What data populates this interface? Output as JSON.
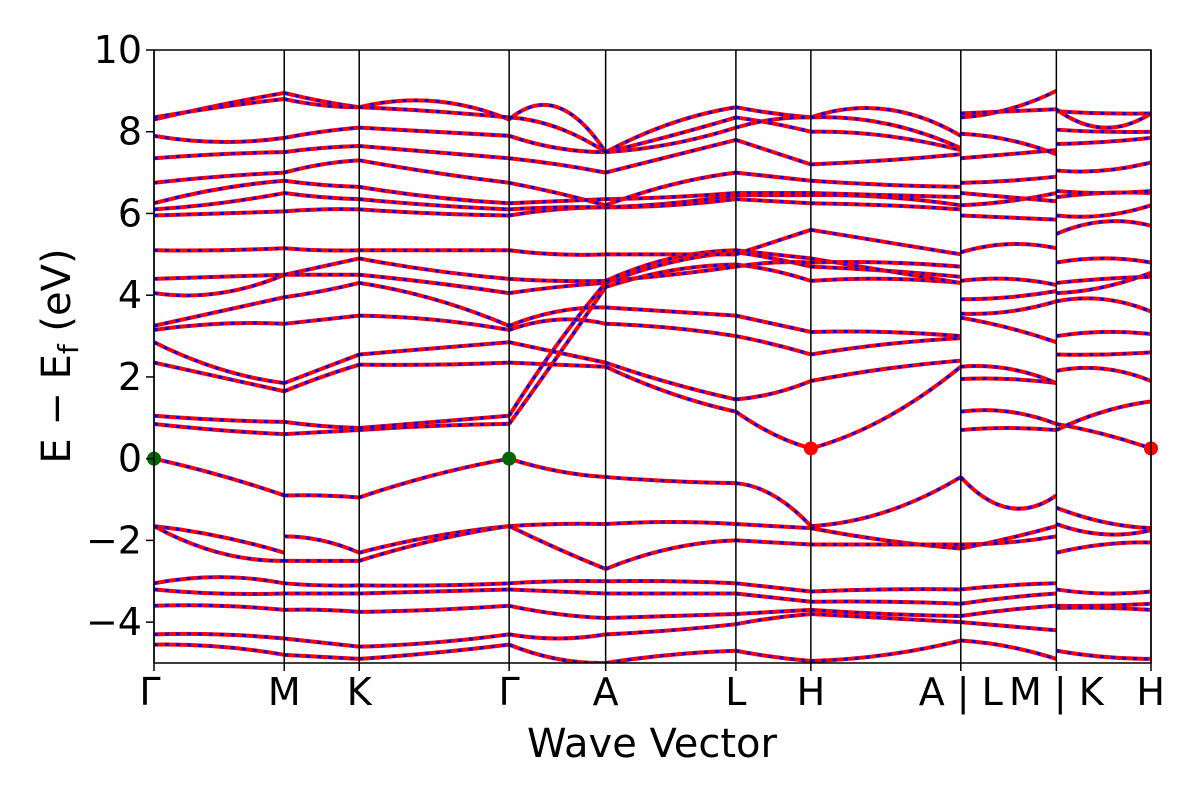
{
  "chart_data": {
    "type": "line",
    "title": "",
    "xlabel": "Wave Vector",
    "ylabel_main": "E − E",
    "ylabel_sub": "f",
    "ylabel_unit": " (eV)",
    "ylim": [
      -5,
      10
    ],
    "yticks": [
      -4,
      -2,
      0,
      2,
      4,
      6,
      8,
      10
    ],
    "ytick_labels": [
      "−4",
      "−2",
      "0",
      "2",
      "4",
      "6",
      "8",
      "10"
    ],
    "xlim": [
      0,
      10.64
    ],
    "kpoints": [
      {
        "label": "Γ",
        "x": 0.0
      },
      {
        "label": "M",
        "x": 1.39
      },
      {
        "label": "K",
        "x": 2.19
      },
      {
        "label": "Γ",
        "x": 3.79
      },
      {
        "label": "A",
        "x": 4.82
      },
      {
        "label": "L",
        "x": 6.21
      },
      {
        "label": "H",
        "x": 7.01
      },
      {
        "label": "A | L",
        "x": 8.61
      },
      {
        "label": "M | K",
        "x": 9.63
      },
      {
        "label": "H",
        "x": 10.64
      }
    ],
    "colors": {
      "band_main": "#ff0000",
      "band_overlay": "#0000ff",
      "vbm_marker": "#006400",
      "cbm_marker": "#ff0000"
    },
    "markers": [
      {
        "name": "VBM",
        "x": 0.0,
        "y": 0.0,
        "color": "#006400"
      },
      {
        "name": "VBM",
        "x": 3.79,
        "y": 0.0,
        "color": "#006400"
      },
      {
        "name": "CBM",
        "x": 7.01,
        "y": 0.25,
        "color": "#ff0000"
      },
      {
        "name": "CBM",
        "x": 10.64,
        "y": 0.25,
        "color": "#ff0000"
      }
    ],
    "segments": [
      {
        "x0": 0.0,
        "x1": 1.39,
        "bands": [
          [
            0.0,
            -0.4,
            -0.9
          ],
          [
            -1.65,
            -1.9,
            -2.3
          ],
          [
            -1.65,
            -2.3,
            -2.5
          ],
          [
            -3.05,
            -2.9,
            -3.05
          ],
          [
            -3.2,
            -3.3,
            -3.3
          ],
          [
            -3.6,
            -3.6,
            -3.7
          ],
          [
            -4.3,
            -4.3,
            -4.4
          ],
          [
            -4.55,
            -4.6,
            -4.8
          ],
          [
            0.85,
            0.7,
            0.6
          ],
          [
            1.05,
            0.95,
            0.9
          ],
          [
            2.35,
            2.0,
            1.65
          ],
          [
            2.85,
            2.2,
            1.85
          ],
          [
            3.15,
            3.3,
            3.3
          ],
          [
            3.25,
            3.6,
            3.95
          ],
          [
            4.05,
            4.05,
            4.5
          ],
          [
            4.4,
            4.45,
            4.5
          ],
          [
            5.1,
            5.1,
            5.15
          ],
          [
            5.95,
            6.0,
            6.05
          ],
          [
            6.1,
            6.25,
            6.5
          ],
          [
            6.25,
            6.6,
            6.8
          ],
          [
            6.75,
            6.9,
            7.0
          ],
          [
            7.35,
            7.45,
            7.5
          ],
          [
            7.9,
            7.75,
            7.85
          ],
          [
            8.3,
            8.65,
            8.95
          ],
          [
            8.35,
            8.6,
            8.8
          ]
        ]
      },
      {
        "x0": 1.39,
        "x1": 2.19,
        "bands": [
          [
            -0.9,
            -0.9,
            -0.95
          ],
          [
            -1.9,
            -2.0,
            -2.3
          ],
          [
            -2.5,
            -2.5,
            -2.5
          ],
          [
            -3.05,
            -3.1,
            -3.1
          ],
          [
            -3.3,
            -3.3,
            -3.3
          ],
          [
            -3.7,
            -3.7,
            -3.75
          ],
          [
            -4.4,
            -4.5,
            -4.6
          ],
          [
            -4.8,
            -4.85,
            -4.9
          ],
          [
            0.6,
            0.65,
            0.7
          ],
          [
            0.9,
            0.8,
            0.75
          ],
          [
            1.65,
            2.0,
            2.3
          ],
          [
            1.85,
            2.2,
            2.55
          ],
          [
            3.3,
            3.4,
            3.5
          ],
          [
            3.95,
            4.1,
            4.3
          ],
          [
            4.5,
            4.5,
            4.5
          ],
          [
            4.5,
            4.7,
            4.9
          ],
          [
            5.15,
            5.1,
            5.1
          ],
          [
            6.05,
            6.1,
            6.1
          ],
          [
            6.5,
            6.4,
            6.35
          ],
          [
            6.8,
            6.7,
            6.65
          ],
          [
            7.0,
            7.2,
            7.3
          ],
          [
            7.5,
            7.6,
            7.65
          ],
          [
            7.85,
            8.0,
            8.1
          ],
          [
            8.95,
            8.75,
            8.6
          ],
          [
            8.8,
            8.65,
            8.6
          ]
        ]
      },
      {
        "x0": 2.19,
        "x1": 3.79,
        "bands": [
          [
            -0.95,
            -0.4,
            0.0
          ],
          [
            -2.3,
            -1.9,
            -1.65
          ],
          [
            -2.5,
            -2.0,
            -1.65
          ],
          [
            -3.1,
            -3.1,
            -3.05
          ],
          [
            -3.3,
            -3.25,
            -3.2
          ],
          [
            -3.75,
            -3.7,
            -3.6
          ],
          [
            -4.6,
            -4.5,
            -4.3
          ],
          [
            -4.9,
            -4.75,
            -4.55
          ],
          [
            0.7,
            0.8,
            0.85
          ],
          [
            0.75,
            0.9,
            1.05
          ],
          [
            2.3,
            2.3,
            2.35
          ],
          [
            2.55,
            2.7,
            2.85
          ],
          [
            3.5,
            3.4,
            3.15
          ],
          [
            4.3,
            3.9,
            3.25
          ],
          [
            4.5,
            4.3,
            4.05
          ],
          [
            4.9,
            4.6,
            4.4
          ],
          [
            5.1,
            5.1,
            5.1
          ],
          [
            6.1,
            6.0,
            5.95
          ],
          [
            6.35,
            6.2,
            6.1
          ],
          [
            6.65,
            6.4,
            6.25
          ],
          [
            7.3,
            7.0,
            6.75
          ],
          [
            7.65,
            7.5,
            7.35
          ],
          [
            8.1,
            8.0,
            7.9
          ],
          [
            8.6,
            8.75,
            8.3
          ],
          [
            8.6,
            8.5,
            8.35
          ]
        ]
      },
      {
        "x0": 3.79,
        "x1": 4.82,
        "bands": [
          [
            0.0,
            -0.3,
            -0.45
          ],
          [
            -1.65,
            -1.6,
            -1.6
          ],
          [
            -1.65,
            -2.2,
            -2.7
          ],
          [
            -3.05,
            -3.0,
            -3.0
          ],
          [
            -3.2,
            -3.25,
            -3.3
          ],
          [
            -3.6,
            -3.8,
            -3.9
          ],
          [
            -4.3,
            -4.4,
            -4.3
          ],
          [
            -4.55,
            -4.9,
            -5.0
          ],
          [
            0.85,
            2.5,
            4.2
          ],
          [
            1.05,
            2.8,
            4.3
          ],
          [
            2.35,
            2.3,
            2.25
          ],
          [
            2.85,
            2.6,
            2.35
          ],
          [
            3.15,
            3.4,
            3.3
          ],
          [
            3.25,
            3.6,
            3.7
          ],
          [
            4.05,
            4.2,
            4.3
          ],
          [
            4.4,
            4.35,
            4.35
          ],
          [
            5.1,
            5.0,
            5.0
          ],
          [
            5.95,
            6.1,
            6.15
          ],
          [
            6.1,
            6.15,
            6.15
          ],
          [
            6.25,
            6.3,
            6.35
          ],
          [
            6.75,
            6.5,
            6.2
          ],
          [
            7.35,
            7.2,
            7.0
          ],
          [
            7.9,
            7.6,
            7.5
          ],
          [
            8.3,
            8.6,
            7.5
          ],
          [
            8.35,
            8.1,
            7.5
          ]
        ]
      },
      {
        "x0": 4.82,
        "x1": 6.21,
        "bands": [
          [
            -0.45,
            -0.55,
            -0.6
          ],
          [
            -1.6,
            -1.55,
            -1.6
          ],
          [
            -2.7,
            -2.2,
            -2.0
          ],
          [
            -3.0,
            -3.0,
            -3.05
          ],
          [
            -3.3,
            -3.3,
            -3.3
          ],
          [
            -3.9,
            -3.85,
            -3.8
          ],
          [
            -4.3,
            -4.2,
            -4.05
          ],
          [
            -5.0,
            -4.8,
            -4.7
          ],
          [
            2.25,
            1.6,
            1.15
          ],
          [
            2.35,
            1.85,
            1.45
          ],
          [
            3.3,
            3.2,
            3.0
          ],
          [
            3.7,
            3.6,
            3.5
          ],
          [
            4.2,
            4.6,
            4.75
          ],
          [
            4.3,
            4.8,
            5.05
          ],
          [
            4.35,
            4.9,
            5.1
          ],
          [
            4.35,
            4.5,
            4.7
          ],
          [
            5.0,
            5.0,
            5.0
          ],
          [
            6.15,
            6.2,
            6.35
          ],
          [
            6.15,
            6.25,
            6.45
          ],
          [
            6.35,
            6.4,
            6.5
          ],
          [
            6.2,
            6.7,
            7.0
          ],
          [
            7.0,
            7.4,
            7.8
          ],
          [
            7.5,
            7.9,
            8.35
          ],
          [
            7.5,
            8.2,
            8.6
          ],
          [
            7.5,
            7.7,
            8.1
          ]
        ]
      },
      {
        "x0": 6.21,
        "x1": 7.01,
        "bands": [
          [
            -0.6,
            -0.9,
            -1.65
          ],
          [
            -1.6,
            -1.65,
            -1.7
          ],
          [
            -2.0,
            -2.05,
            -2.1
          ],
          [
            -3.05,
            -3.15,
            -3.25
          ],
          [
            -3.3,
            -3.4,
            -3.5
          ],
          [
            -3.8,
            -3.75,
            -3.7
          ],
          [
            -4.05,
            -3.9,
            -3.8
          ],
          [
            -4.7,
            -4.85,
            -4.95
          ],
          [
            1.15,
            0.6,
            0.25
          ],
          [
            1.45,
            1.6,
            1.9
          ],
          [
            3.0,
            2.8,
            2.55
          ],
          [
            3.5,
            3.3,
            3.1
          ],
          [
            4.75,
            4.6,
            4.35
          ],
          [
            5.05,
            4.9,
            4.7
          ],
          [
            5.1,
            5.0,
            4.9
          ],
          [
            4.7,
            4.8,
            4.8
          ],
          [
            5.0,
            5.3,
            5.6
          ],
          [
            6.35,
            6.3,
            6.25
          ],
          [
            6.45,
            6.45,
            6.45
          ],
          [
            6.5,
            6.5,
            6.5
          ],
          [
            7.0,
            6.9,
            6.8
          ],
          [
            7.8,
            7.5,
            7.2
          ],
          [
            8.35,
            8.2,
            8.0
          ],
          [
            8.6,
            8.45,
            8.35
          ],
          [
            8.1,
            8.3,
            8.35
          ]
        ]
      },
      {
        "x0": 7.01,
        "x1": 8.61,
        "bands": [
          [
            -1.65,
            -1.3,
            -0.45
          ],
          [
            -1.7,
            -2.0,
            -2.2
          ],
          [
            -2.1,
            -2.1,
            -2.1
          ],
          [
            -3.25,
            -3.2,
            -3.2
          ],
          [
            -3.5,
            -3.5,
            -3.55
          ],
          [
            -3.7,
            -3.8,
            -3.85
          ],
          [
            -3.8,
            -3.9,
            -4.0
          ],
          [
            -4.95,
            -4.8,
            -4.45
          ],
          [
            0.25,
            1.0,
            2.25
          ],
          [
            1.9,
            2.2,
            2.4
          ],
          [
            2.55,
            2.8,
            2.95
          ],
          [
            3.1,
            3.1,
            3.0
          ],
          [
            4.35,
            4.4,
            4.3
          ],
          [
            4.7,
            4.6,
            4.45
          ],
          [
            4.9,
            4.6,
            4.3
          ],
          [
            4.8,
            4.8,
            4.7
          ],
          [
            5.6,
            5.3,
            5.0
          ],
          [
            6.25,
            6.2,
            6.1
          ],
          [
            6.45,
            6.4,
            6.2
          ],
          [
            6.5,
            6.45,
            6.4
          ],
          [
            6.8,
            6.7,
            6.65
          ],
          [
            7.2,
            7.3,
            7.45
          ],
          [
            8.0,
            7.9,
            7.55
          ],
          [
            8.35,
            8.55,
            7.9
          ],
          [
            8.35,
            8.2,
            7.6
          ]
        ]
      },
      {
        "x0": 8.61,
        "x1": 9.63,
        "bands": [
          [
            -0.45,
            -1.2,
            -0.9
          ],
          [
            -2.2,
            -1.95,
            -1.65
          ],
          [
            -2.1,
            -2.05,
            -1.9
          ],
          [
            -3.2,
            -3.1,
            -3.05
          ],
          [
            -3.55,
            -3.4,
            -3.3
          ],
          [
            -3.85,
            -3.7,
            -3.6
          ],
          [
            -4.0,
            -4.1,
            -4.2
          ],
          [
            -4.45,
            -4.6,
            -4.9
          ],
          [
            0.7,
            0.75,
            0.7
          ],
          [
            1.15,
            1.15,
            0.85
          ],
          [
            1.95,
            1.95,
            1.85
          ],
          [
            2.25,
            2.2,
            1.85
          ],
          [
            3.45,
            3.2,
            2.85
          ],
          [
            3.55,
            3.6,
            3.85
          ],
          [
            3.9,
            3.95,
            4.1
          ],
          [
            4.35,
            4.4,
            4.25
          ],
          [
            5.05,
            5.25,
            5.15
          ],
          [
            5.95,
            5.9,
            5.85
          ],
          [
            6.2,
            6.3,
            6.5
          ],
          [
            6.5,
            6.4,
            6.3
          ],
          [
            6.75,
            6.8,
            6.9
          ],
          [
            7.35,
            7.45,
            7.55
          ],
          [
            7.95,
            7.8,
            7.45
          ],
          [
            8.35,
            8.55,
            9.0
          ],
          [
            8.45,
            8.5,
            8.55
          ]
        ]
      },
      {
        "x0": 9.63,
        "x1": 10.64,
        "bands": [
          [
            0.85,
            0.6,
            0.25
          ],
          [
            0.7,
            1.15,
            1.4
          ],
          [
            -1.2,
            -1.55,
            -1.7
          ],
          [
            -1.6,
            -1.85,
            -1.75
          ],
          [
            -2.3,
            -2.1,
            -2.05
          ],
          [
            -3.2,
            -3.3,
            -3.25
          ],
          [
            -3.6,
            -3.6,
            -3.55
          ],
          [
            -3.65,
            -3.65,
            -3.7
          ],
          [
            -4.7,
            -4.85,
            -4.9
          ],
          [
            2.55,
            2.55,
            2.6
          ],
          [
            2.15,
            2.2,
            1.9
          ],
          [
            3.0,
            3.1,
            3.05
          ],
          [
            3.85,
            3.9,
            3.6
          ],
          [
            4.05,
            4.2,
            4.55
          ],
          [
            4.3,
            4.4,
            4.45
          ],
          [
            4.8,
            4.9,
            4.8
          ],
          [
            5.5,
            5.8,
            5.7
          ],
          [
            5.95,
            5.95,
            6.2
          ],
          [
            6.4,
            6.5,
            6.5
          ],
          [
            6.55,
            6.5,
            6.55
          ],
          [
            7.05,
            7.05,
            7.25
          ],
          [
            7.7,
            7.75,
            7.85
          ],
          [
            8.05,
            8.0,
            8.0
          ],
          [
            8.5,
            8.45,
            8.45
          ],
          [
            8.55,
            8.1,
            8.45
          ]
        ]
      }
    ]
  }
}
